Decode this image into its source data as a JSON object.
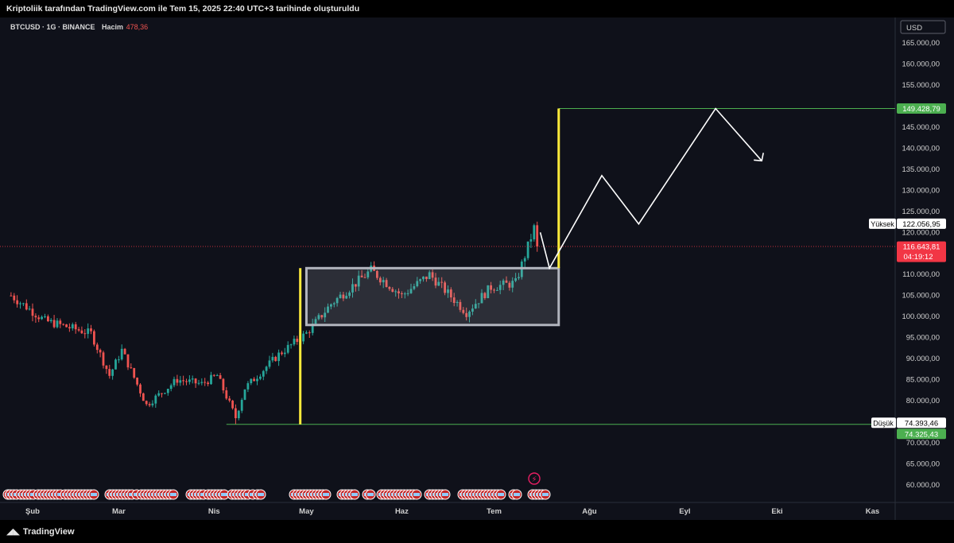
{
  "header": {
    "text": "Kriptoliik tarafından TradingView.com ile Tem 15, 2025 22:40 UTC+3 tarihinde oluşturuldu"
  },
  "footer": {
    "logo_text": "TradingView"
  },
  "legend": {
    "symbol": "BTCUSD · 1G · BINANCE",
    "volume_label": "Hacim",
    "volume_value": "478,36"
  },
  "price_scale": {
    "currency": "USD",
    "ticks": [
      "165.000,00",
      "160.000,00",
      "155.000,00",
      "150.000,00",
      "145.000,00",
      "140.000,00",
      "135.000,00",
      "130.000,00",
      "125.000,00",
      "120.000,00",
      "115.000,00",
      "110.000,00",
      "105.000,00",
      "100.000,00",
      "95.000,00",
      "90.000,00",
      "85.000,00",
      "80.000,00",
      "75.000,00",
      "70.000,00",
      "65.000,00",
      "60.000,00"
    ]
  },
  "time_scale": {
    "months": [
      "Şub",
      "Mar",
      "Nis",
      "May",
      "Haz",
      "Tem",
      "Ağu",
      "Eyl",
      "Eki",
      "Kas"
    ]
  },
  "markers": {
    "target": "149.428,79",
    "high_label": "Yüksek",
    "high_value": "122.056,95",
    "last_price": "116.643,81",
    "countdown": "04:19:12",
    "low_label": "Düşük",
    "low_value": "74.393,46",
    "low_value_2": "74.325,43"
  },
  "colors": {
    "up": "#26a69a",
    "down": "#ef5350",
    "target_line": "#4caf50",
    "yellow": "#ffeb3b",
    "box_border": "#b2b5be",
    "last_price": "#f23645",
    "event_icon": "#e91e63"
  },
  "chart_data": {
    "type": "candlestick",
    "symbol": "BTCUSD",
    "interval": "1D",
    "exchange": "BINANCE",
    "ylim": [
      57000,
      168000
    ],
    "x_range": [
      "2025-01-24",
      "2025-11-28"
    ],
    "last_price": 116643.81,
    "high": 122056.95,
    "low": 74393.46,
    "target": 149428.79,
    "approx_close_anchors": [
      {
        "date": "2025-01-25",
        "price": 105000
      },
      {
        "date": "2025-02-05",
        "price": 99000
      },
      {
        "date": "2025-02-20",
        "price": 96000
      },
      {
        "date": "2025-02-26",
        "price": 86000
      },
      {
        "date": "2025-03-02",
        "price": 92000
      },
      {
        "date": "2025-03-10",
        "price": 79000
      },
      {
        "date": "2025-03-20",
        "price": 85000
      },
      {
        "date": "2025-03-28",
        "price": 84000
      },
      {
        "date": "2025-04-02",
        "price": 86000
      },
      {
        "date": "2025-04-08",
        "price": 76000
      },
      {
        "date": "2025-04-11",
        "price": 83000
      },
      {
        "date": "2025-04-22",
        "price": 91000
      },
      {
        "date": "2025-05-01",
        "price": 96000
      },
      {
        "date": "2025-05-09",
        "price": 103000
      },
      {
        "date": "2025-05-22",
        "price": 111000
      },
      {
        "date": "2025-06-01",
        "price": 105000
      },
      {
        "date": "2025-06-10",
        "price": 110000
      },
      {
        "date": "2025-06-22",
        "price": 101000
      },
      {
        "date": "2025-06-30",
        "price": 107000
      },
      {
        "date": "2025-07-08",
        "price": 108000
      },
      {
        "date": "2025-07-14",
        "price": 121000
      },
      {
        "date": "2025-07-15",
        "price": 116643
      }
    ],
    "range_box": {
      "start": "2025-05-01",
      "end": "2025-07-22",
      "top": 111500,
      "bottom": 98000
    },
    "measure_1": {
      "date": "2025-04-29",
      "from": 74393.46,
      "to": 111500
    },
    "measure_2": {
      "date": "2025-07-22",
      "from": 111500,
      "to": 149428.79
    },
    "projection_path": [
      {
        "date": "2025-07-16",
        "price": 120000
      },
      {
        "date": "2025-07-19",
        "price": 111500
      },
      {
        "date": "2025-08-05",
        "price": 133500
      },
      {
        "date": "2025-08-17",
        "price": 122000
      },
      {
        "date": "2025-09-11",
        "price": 149428.79
      },
      {
        "date": "2025-09-26",
        "price": 137000
      }
    ]
  }
}
